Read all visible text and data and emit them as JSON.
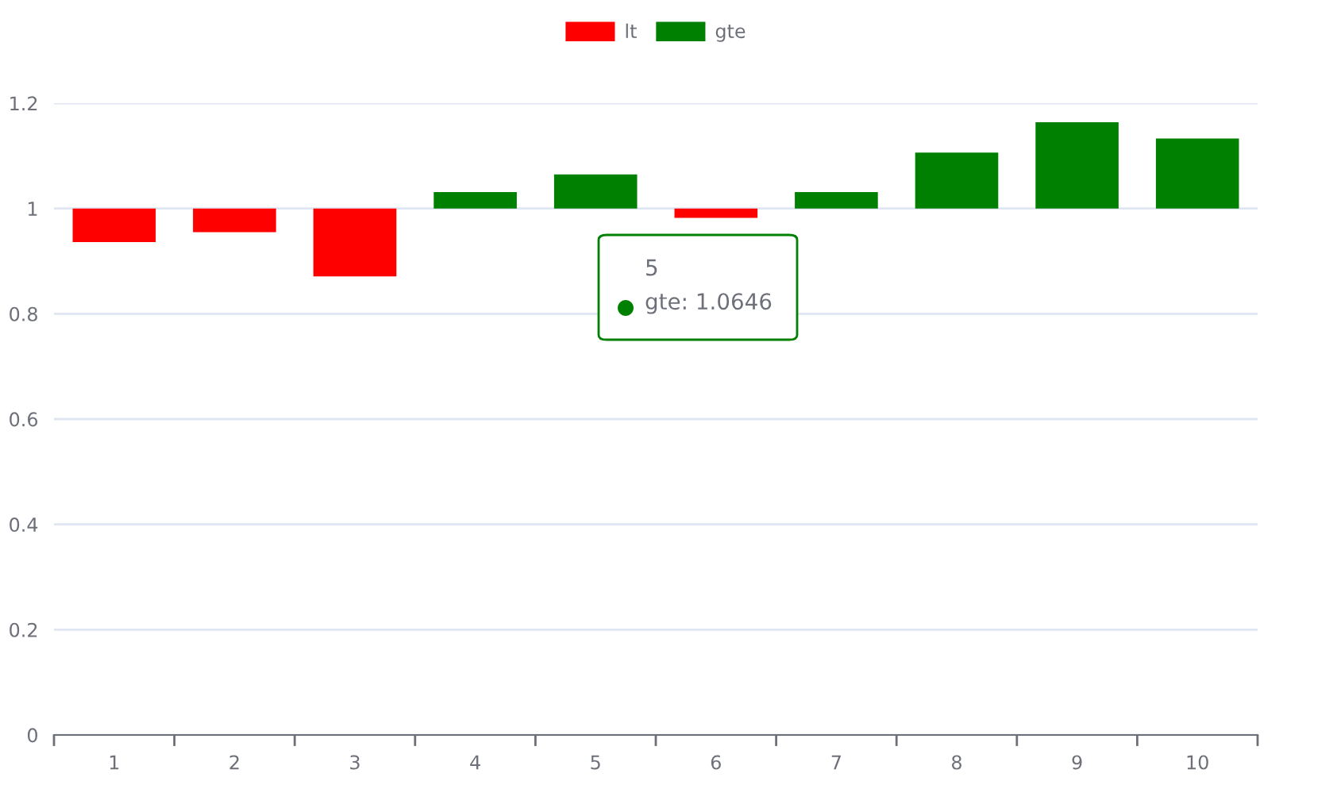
{
  "chart_data": {
    "type": "bar",
    "categories": [
      "1",
      "2",
      "3",
      "4",
      "5",
      "6",
      "7",
      "8",
      "9",
      "10"
    ],
    "series": [
      {
        "name": "lt",
        "color": "#ff0000",
        "values": [
          -0.064,
          -0.045,
          -0.129,
          null,
          null,
          -0.018,
          null,
          null,
          null,
          null
        ],
        "base": [
          1,
          1,
          1,
          null,
          null,
          1,
          null,
          null,
          null,
          null
        ]
      },
      {
        "name": "gte",
        "color": "#008000",
        "values": [
          null,
          null,
          null,
          0.031,
          0.0646,
          null,
          0.031,
          0.106,
          0.164,
          0.133
        ],
        "base": [
          null,
          null,
          null,
          1,
          1,
          null,
          1,
          1,
          1,
          1
        ]
      }
    ],
    "ylim": [
      0,
      1.2
    ],
    "yticks": [
      0,
      0.2,
      0.4,
      0.6,
      0.8,
      1,
      1.2
    ],
    "grid": "y",
    "legend": "top",
    "annotations": [
      "5\ngte: 1.0646"
    ]
  }
}
